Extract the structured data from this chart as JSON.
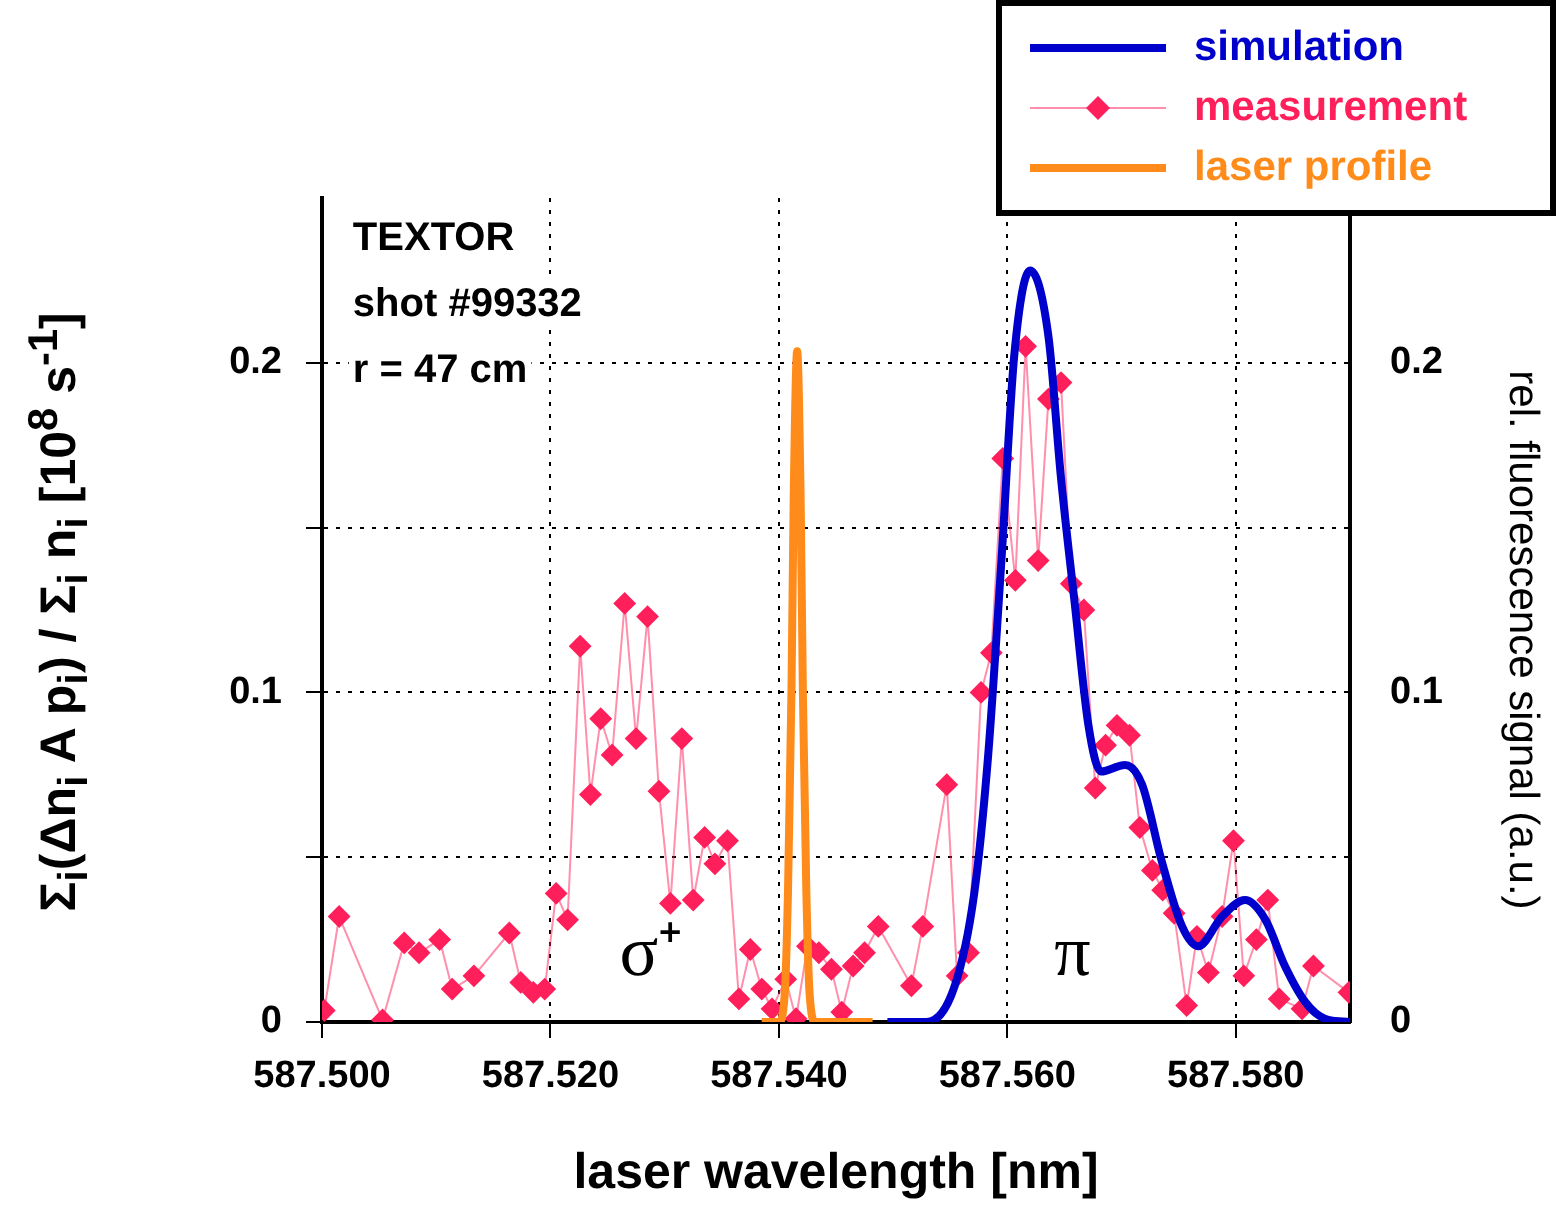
{
  "chart_data": {
    "type": "line",
    "xlabel": "laser wavelength [nm]",
    "ylabel": "Σ$_{i}$(Δn$_{i}$ A p$_{i}$) / Σ$_{i}$ n$_{i}$  [10$^{8}$ s$^{-1}$]",
    "y2label": "rel. fluorescence signal (a.u.)",
    "xlim": [
      587.5,
      587.59
    ],
    "xticks": [
      {
        "value": 587.5,
        "label": "587.500"
      },
      {
        "value": 587.52,
        "label": "587.520"
      },
      {
        "value": 587.54,
        "label": "587.540"
      },
      {
        "value": 587.56,
        "label": "587.560"
      },
      {
        "value": 587.58,
        "label": "587.580"
      }
    ],
    "ylim": [
      0,
      0.25
    ],
    "yticks": [
      0,
      {
        "value": 0.05,
        "label": null
      },
      0.1,
      {
        "value": 0.15,
        "label": null
      },
      0.2
    ],
    "y2lim": [
      0,
      0.25
    ],
    "y2ticks": [
      0,
      0.1,
      0.2
    ],
    "grid": true,
    "legend": "top right",
    "annotations": [
      "TEXTOR",
      "shot #99332",
      "r = 47 cm",
      "σ⁺",
      "π"
    ],
    "series": [
      {
        "name": "simulation",
        "color": "#0000cc",
        "marker": "none",
        "x": [
          587.5495,
          587.5529,
          587.5554,
          587.5571,
          587.5583,
          587.5595,
          587.5606,
          587.562,
          587.5636,
          587.5647,
          587.5659,
          587.5671,
          587.5682,
          587.5703,
          587.5718,
          587.5735,
          587.5753,
          587.5767,
          587.5788,
          587.5808,
          587.5826,
          587.5843,
          587.5861,
          587.5878,
          587.59
        ],
        "values": [
          0,
          0,
          0.011,
          0.039,
          0.08,
          0.141,
          0.202,
          0.228,
          0.208,
          0.165,
          0.127,
          0.09,
          0.076,
          0.078,
          0.072,
          0.049,
          0.029,
          0.023,
          0.032,
          0.037,
          0.031,
          0.017,
          0.006,
          0.001,
          0
        ]
      },
      {
        "name": "measurement",
        "color": "#ff1f5a",
        "marker": "diamond",
        "x": [
          587.5002,
          587.5015,
          587.5053,
          587.5072,
          587.5085,
          587.5103,
          587.5114,
          587.5133,
          587.5164,
          587.5174,
          587.5185,
          587.5195,
          587.5205,
          587.5215,
          587.5226,
          587.5235,
          587.5244,
          587.5254,
          587.5265,
          587.5275,
          587.5285,
          587.5295,
          587.5305,
          587.5315,
          587.5325,
          587.5335,
          587.5344,
          587.5355,
          587.5365,
          587.5375,
          587.5385,
          587.5394,
          587.5406,
          587.5415,
          587.5425,
          587.5435,
          587.5446,
          587.5455,
          587.5465,
          587.5475,
          587.5487,
          587.5516,
          587.5526,
          587.5547,
          587.5556,
          587.5566,
          587.5577,
          587.5586,
          587.5596,
          587.5607,
          587.5616,
          587.5627,
          587.5636,
          587.5647,
          587.5656,
          587.5667,
          587.5677,
          587.5686,
          587.5696,
          587.5707,
          587.5716,
          587.5727,
          587.5736,
          587.5746,
          587.5757,
          587.5766,
          587.5776,
          587.5788,
          587.5798,
          587.5807,
          587.5818,
          587.5828,
          587.5838,
          587.5858,
          587.5868,
          587.5899
        ],
        "values": [
          0.0035,
          0.032,
          0.0006,
          0.024,
          0.021,
          0.025,
          0.01,
          0.014,
          0.027,
          0.012,
          0.009,
          0.01,
          0.039,
          0.031,
          0.114,
          0.069,
          0.092,
          0.081,
          0.127,
          0.086,
          0.123,
          0.07,
          0.036,
          0.086,
          0.037,
          0.056,
          0.048,
          0.055,
          0.007,
          0.022,
          0.01,
          0.004,
          0.013,
          0.001,
          0.023,
          0.021,
          0.016,
          0.003,
          0.017,
          0.021,
          0.029,
          0.011,
          0.029,
          0.072,
          0.014,
          0.021,
          0.1,
          0.112,
          0.171,
          0.134,
          0.205,
          0.14,
          0.189,
          0.194,
          0.133,
          0.125,
          0.071,
          0.084,
          0.09,
          0.087,
          0.059,
          0.046,
          0.04,
          0.033,
          0.005,
          0.026,
          0.015,
          0.032,
          0.055,
          0.014,
          0.025,
          0.037,
          0.007,
          0.004,
          0.017,
          0.009
        ]
      },
      {
        "name": "laser profile",
        "color": "#ff8c1a",
        "marker": "none",
        "x": [
          587.5385,
          587.54,
          587.5405,
          587.5408,
          587.5411,
          587.5413,
          587.5416,
          587.5419,
          587.5421,
          587.5424,
          587.5427,
          587.5432,
          587.5482
        ],
        "values": [
          0,
          0,
          0.008,
          0.04,
          0.1,
          0.16,
          0.2035,
          0.16,
          0.1,
          0.04,
          0.008,
          0,
          0
        ]
      }
    ]
  }
}
